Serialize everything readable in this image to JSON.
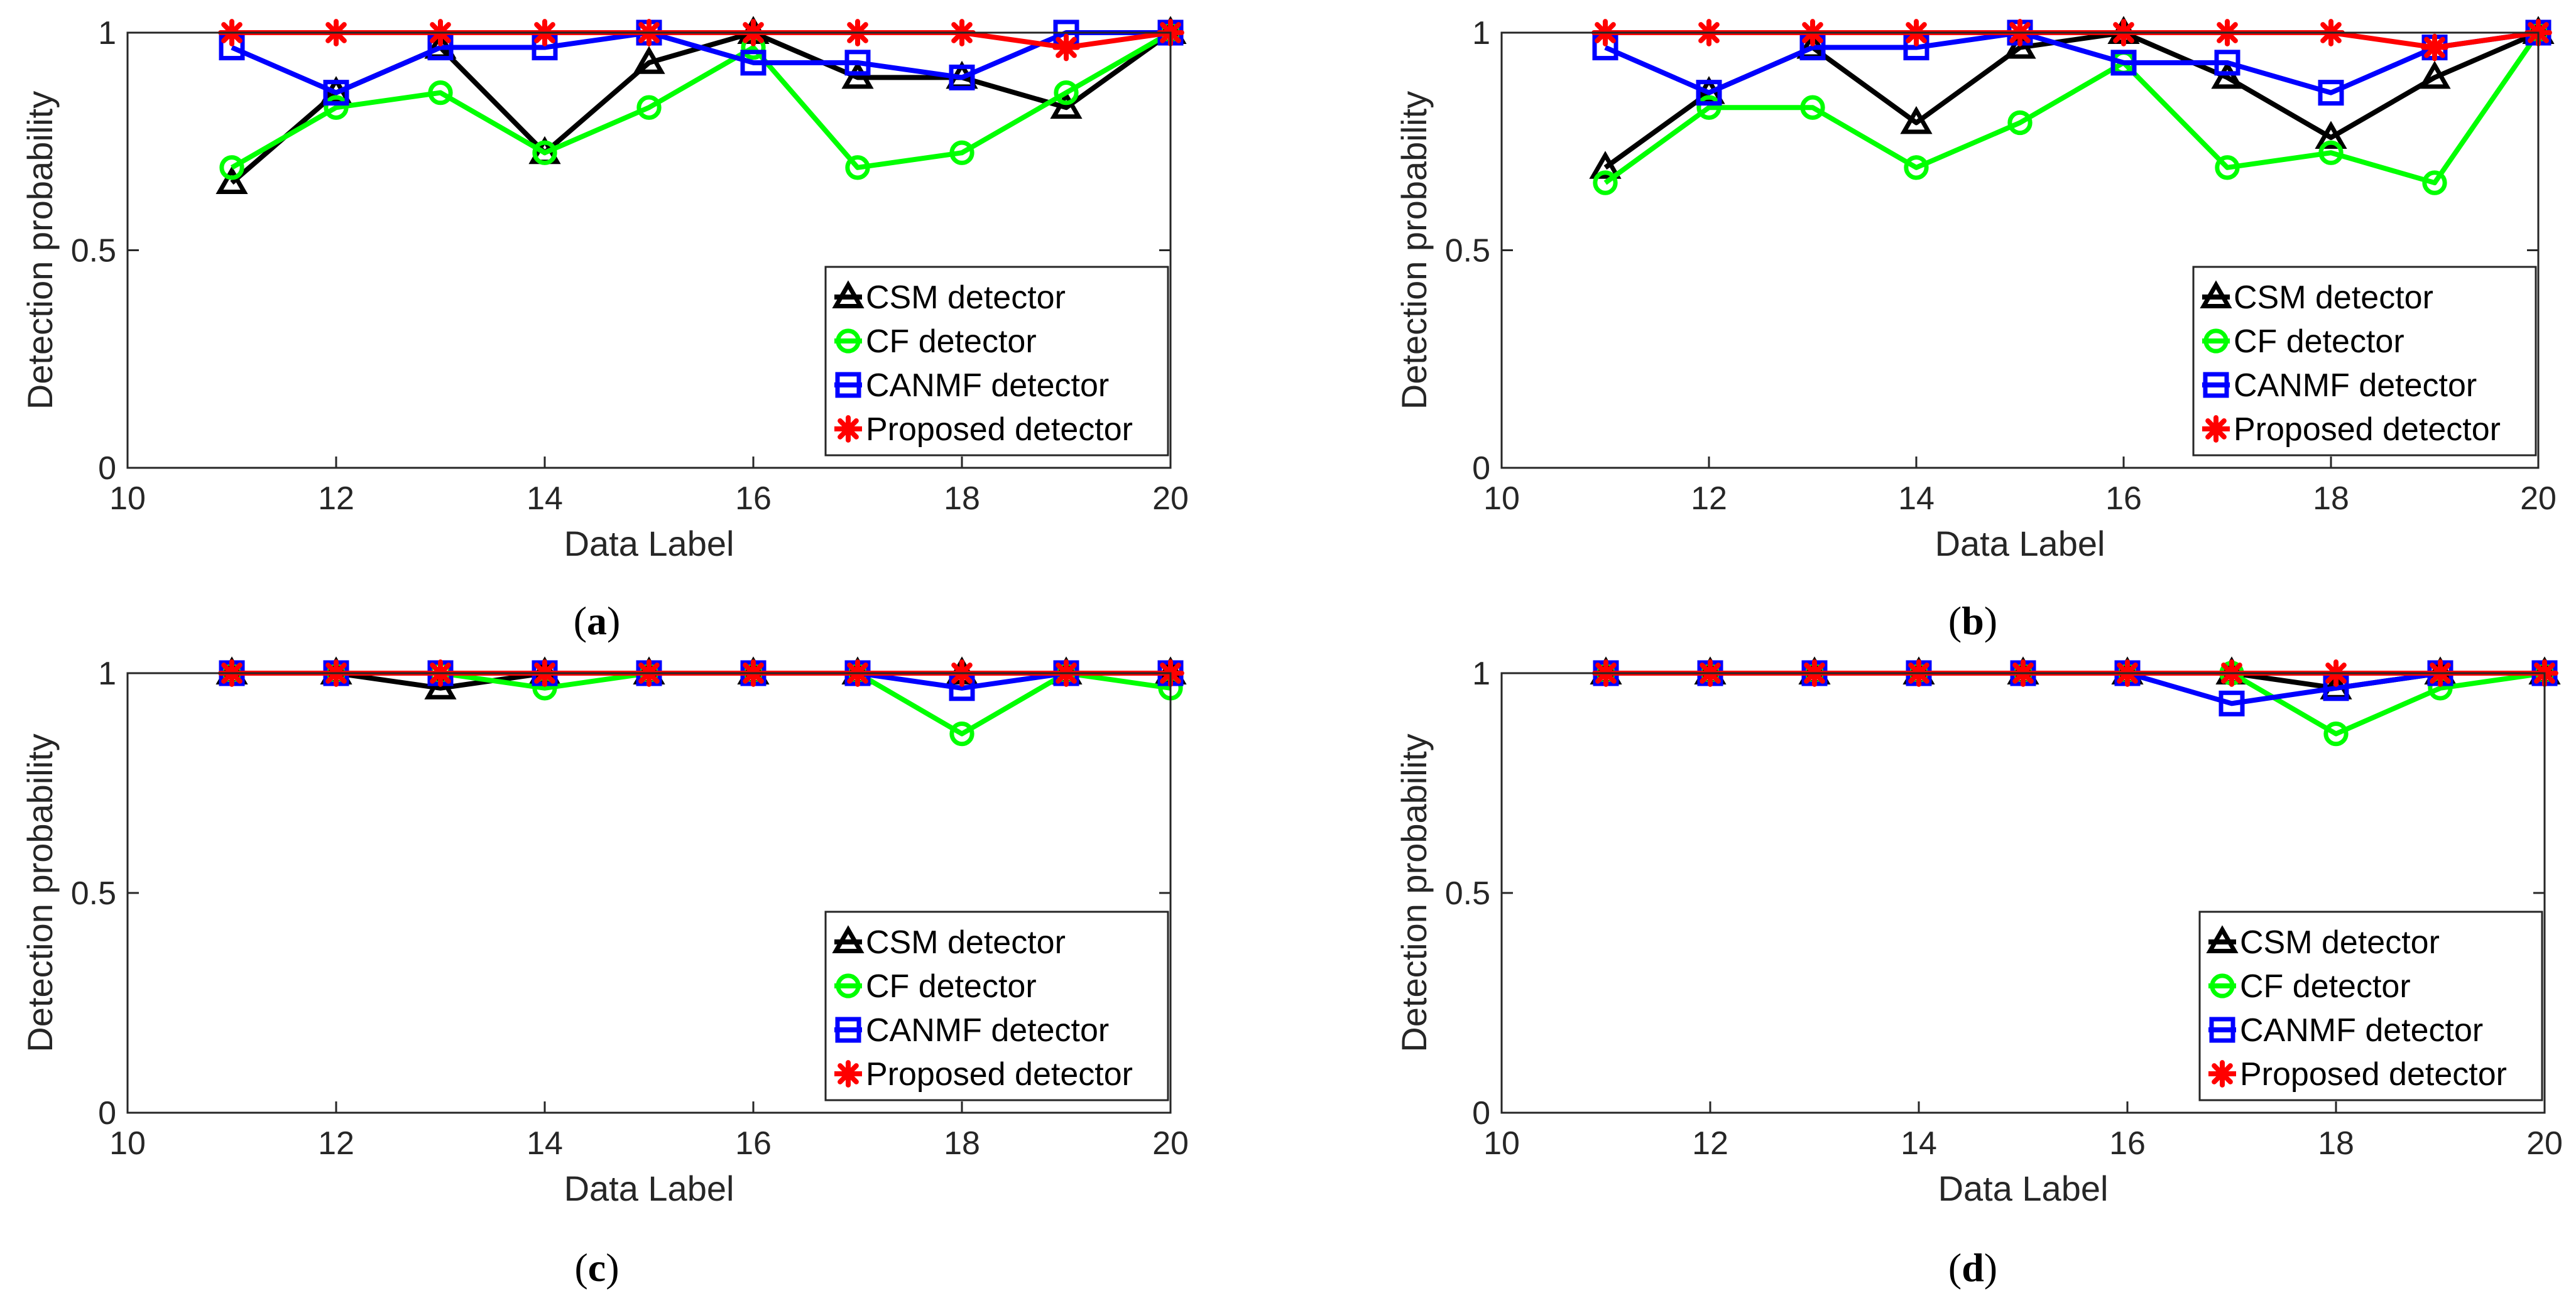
{
  "figure": {
    "colors": {
      "CSM detector": "#000000",
      "CF detector": "#00ff00",
      "CANMF detector": "#0000ff",
      "Proposed detector": "#ff0000"
    },
    "markers": {
      "CSM detector": "triangle",
      "CF detector": "circle",
      "CANMF detector": "square",
      "Proposed detector": "asterisk"
    }
  },
  "chart_data": [
    {
      "type": "line",
      "panel_caption": {
        "open": "(",
        "letter": "a",
        "close": ")"
      },
      "xlabel": "Data Label",
      "ylabel": "Detection probability",
      "xlim": [
        10,
        20
      ],
      "ylim": [
        0,
        1
      ],
      "xticks": [
        "10",
        "12",
        "14",
        "16",
        "18",
        "20"
      ],
      "yticks": [
        "0",
        "0.5",
        "1"
      ],
      "legend_position": "bottom-right",
      "grid": false,
      "x": [
        11,
        12,
        13,
        14,
        15,
        16,
        17,
        18,
        19,
        20
      ],
      "series": [
        {
          "name": "CSM detector",
          "values": [
            0.655,
            0.862,
            0.966,
            0.724,
            0.931,
            1.0,
            0.897,
            0.897,
            0.828,
            1.0
          ]
        },
        {
          "name": "CF detector",
          "values": [
            0.69,
            0.828,
            0.862,
            0.724,
            0.828,
            0.966,
            0.69,
            0.724,
            0.862,
            1.0
          ]
        },
        {
          "name": "CANMF detector",
          "values": [
            0.966,
            0.862,
            0.966,
            0.966,
            1.0,
            0.931,
            0.931,
            0.897,
            1.0,
            1.0
          ]
        },
        {
          "name": "Proposed detector",
          "values": [
            1.0,
            1.0,
            1.0,
            1.0,
            1.0,
            1.0,
            1.0,
            1.0,
            0.966,
            1.0
          ]
        }
      ]
    },
    {
      "type": "line",
      "panel_caption": {
        "open": "(",
        "letter": "b",
        "close": ")"
      },
      "xlabel": "Data Label",
      "ylabel": "Detection probability",
      "xlim": [
        10,
        20
      ],
      "ylim": [
        0,
        1
      ],
      "xticks": [
        "10",
        "12",
        "14",
        "16",
        "18",
        "20"
      ],
      "yticks": [
        "0",
        "0.5",
        "1"
      ],
      "legend_position": "bottom-right",
      "grid": false,
      "x": [
        11,
        12,
        13,
        14,
        15,
        16,
        17,
        18,
        19,
        20
      ],
      "series": [
        {
          "name": "CSM detector",
          "values": [
            0.69,
            0.862,
            0.966,
            0.793,
            0.966,
            1.0,
            0.897,
            0.759,
            0.897,
            1.0
          ]
        },
        {
          "name": "CF detector",
          "values": [
            0.655,
            0.828,
            0.828,
            0.69,
            0.793,
            0.931,
            0.69,
            0.724,
            0.655,
            1.0
          ]
        },
        {
          "name": "CANMF detector",
          "values": [
            0.966,
            0.862,
            0.966,
            0.966,
            1.0,
            0.931,
            0.931,
            0.862,
            0.966,
            1.0
          ]
        },
        {
          "name": "Proposed detector",
          "values": [
            1.0,
            1.0,
            1.0,
            1.0,
            1.0,
            1.0,
            1.0,
            1.0,
            0.966,
            1.0
          ]
        }
      ]
    },
    {
      "type": "line",
      "panel_caption": {
        "open": "(",
        "letter": "c",
        "close": ")"
      },
      "xlabel": "Data Label",
      "ylabel": "Detection probability",
      "xlim": [
        10,
        20
      ],
      "ylim": [
        0,
        1
      ],
      "xticks": [
        "10",
        "12",
        "14",
        "16",
        "18",
        "20"
      ],
      "yticks": [
        "0",
        "0.5",
        "1"
      ],
      "legend_position": "bottom-right",
      "grid": false,
      "x": [
        11,
        12,
        13,
        14,
        15,
        16,
        17,
        18,
        19,
        20
      ],
      "series": [
        {
          "name": "CSM detector",
          "values": [
            1.0,
            1.0,
            0.966,
            1.0,
            1.0,
            1.0,
            1.0,
            1.0,
            1.0,
            1.0
          ]
        },
        {
          "name": "CF detector",
          "values": [
            1.0,
            1.0,
            1.0,
            0.966,
            1.0,
            1.0,
            1.0,
            0.862,
            1.0,
            0.966
          ]
        },
        {
          "name": "CANMF detector",
          "values": [
            1.0,
            1.0,
            1.0,
            1.0,
            1.0,
            1.0,
            1.0,
            0.966,
            1.0,
            1.0
          ]
        },
        {
          "name": "Proposed detector",
          "values": [
            1.0,
            1.0,
            1.0,
            1.0,
            1.0,
            1.0,
            1.0,
            1.0,
            1.0,
            1.0
          ]
        }
      ]
    },
    {
      "type": "line",
      "panel_caption": {
        "open": "(",
        "letter": "d",
        "close": ")"
      },
      "xlabel": "Data Label",
      "ylabel": "Detection probability",
      "xlim": [
        10,
        20
      ],
      "ylim": [
        0,
        1
      ],
      "xticks": [
        "10",
        "12",
        "14",
        "16",
        "18",
        "20"
      ],
      "yticks": [
        "0",
        "0.5",
        "1"
      ],
      "legend_position": "bottom-right",
      "grid": false,
      "x": [
        11,
        12,
        13,
        14,
        15,
        16,
        17,
        18,
        19,
        20
      ],
      "series": [
        {
          "name": "CSM detector",
          "values": [
            1.0,
            1.0,
            1.0,
            1.0,
            1.0,
            1.0,
            1.0,
            0.966,
            1.0,
            1.0
          ]
        },
        {
          "name": "CF detector",
          "values": [
            1.0,
            1.0,
            1.0,
            1.0,
            1.0,
            1.0,
            1.0,
            0.862,
            0.966,
            1.0
          ]
        },
        {
          "name": "CANMF detector",
          "values": [
            1.0,
            1.0,
            1.0,
            1.0,
            1.0,
            1.0,
            0.931,
            0.966,
            1.0,
            1.0
          ]
        },
        {
          "name": "Proposed detector",
          "values": [
            1.0,
            1.0,
            1.0,
            1.0,
            1.0,
            1.0,
            1.0,
            1.0,
            1.0,
            1.0
          ]
        }
      ]
    }
  ]
}
